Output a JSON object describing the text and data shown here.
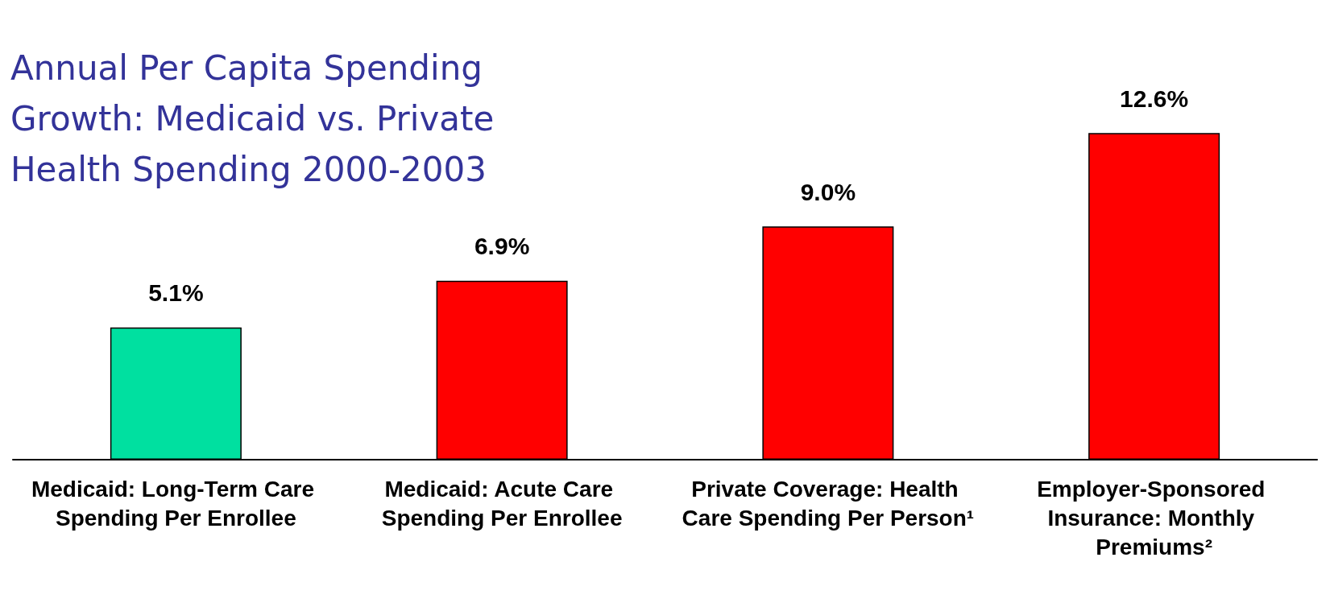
{
  "chart_data": {
    "type": "bar",
    "title": "Annual Per Capita Spending Growth: Medicaid vs. Private Health Spending 2000-2003",
    "categories": [
      "Medicaid: Long-Term Care Spending Per Enrollee",
      "Medicaid: Acute Care Spending Per Enrollee",
      "Private Coverage: Health Care Spending Per Person¹",
      "Employer-Sponsored Insurance: Monthly Premiums²"
    ],
    "values": [
      5.1,
      6.9,
      9.0,
      12.6
    ],
    "colors": [
      "#00e0a0",
      "#ff0000",
      "#ff0000",
      "#ff0000"
    ],
    "value_labels": [
      "5.1%",
      "6.9%",
      "9.0%",
      "12.6%"
    ]
  }
}
